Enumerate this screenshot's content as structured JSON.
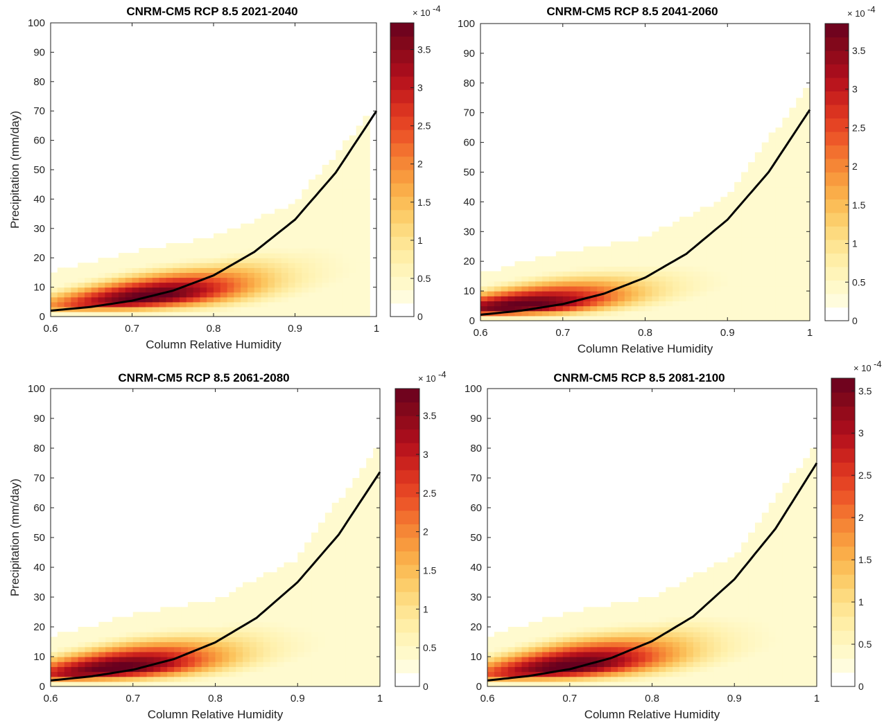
{
  "figure": {
    "colormap_stops": [
      "#ffffff",
      "#fffbd2",
      "#fff2b0",
      "#fde08a",
      "#fcc65f",
      "#f9a442",
      "#f47c32",
      "#ea4c26",
      "#d42a1e",
      "#b10e1c",
      "#8a0a1a",
      "#67001f"
    ]
  },
  "chart_data": [
    {
      "type": "heatmap",
      "title": "CNRM-CM5 RCP 8.5 2021-2040",
      "xlabel": "Column Relative Humidity",
      "ylabel": "Precipitation (mm/day)",
      "xlim": [
        0.6,
        1.0
      ],
      "ylim": [
        0,
        100
      ],
      "xticks": [
        "0.6",
        "0.7",
        "0.8",
        "0.9",
        "1"
      ],
      "yticks": [
        "0",
        "10",
        "20",
        "30",
        "40",
        "50",
        "60",
        "70",
        "80",
        "90",
        "100"
      ],
      "colorbar": {
        "min": 0,
        "max": 3.85,
        "ticks": [
          "0",
          "0.5",
          "1",
          "1.5",
          "2",
          "2.5",
          "3",
          "3.5"
        ],
        "exponent_base": "× 10",
        "exponent": "-4"
      },
      "fit_curve": {
        "x": [
          0.6,
          0.65,
          0.7,
          0.75,
          0.8,
          0.85,
          0.9,
          0.95,
          1.0
        ],
        "y": [
          2,
          3.3,
          5.4,
          8.8,
          14,
          22,
          33,
          49,
          70
        ]
      },
      "density": {
        "ridge_y": [
          3.5,
          6,
          9.5,
          13,
          17
        ],
        "ridge_x": [
          0.6,
          0.7,
          0.8,
          0.9,
          1.0
        ],
        "peak_x": 0.72,
        "upper_envelope": [
          15,
          22,
          27,
          39,
          72
        ],
        "max_x": 0.995
      }
    },
    {
      "type": "heatmap",
      "title": "CNRM-CM5 RCP 8.5 2041-2060",
      "xlabel": "Column Relative Humidity",
      "ylabel": "",
      "xlim": [
        0.6,
        1.0
      ],
      "ylim": [
        0,
        100
      ],
      "xticks": [
        "0.6",
        "0.7",
        "0.8",
        "0.9",
        "1"
      ],
      "yticks": [
        "0",
        "10",
        "20",
        "30",
        "40",
        "50",
        "60",
        "70",
        "80",
        "90",
        "100"
      ],
      "colorbar": {
        "min": 0,
        "max": 3.85,
        "ticks": [
          "0",
          "0.5",
          "1",
          "1.5",
          "2",
          "2.5",
          "3",
          "3.5"
        ],
        "exponent_base": "× 10",
        "exponent": "-4"
      },
      "fit_curve": {
        "x": [
          0.6,
          0.65,
          0.7,
          0.75,
          0.8,
          0.85,
          0.9,
          0.95,
          1.0
        ],
        "y": [
          2,
          3.4,
          5.6,
          9.1,
          14.5,
          22.5,
          34,
          50,
          71
        ]
      },
      "density": {
        "ridge_y": [
          4,
          6,
          9.5,
          13,
          17
        ],
        "ridge_x": [
          0.6,
          0.7,
          0.8,
          0.9,
          1.0
        ],
        "peak_x": 0.65,
        "upper_envelope": [
          16,
          23,
          28,
          42,
          80
        ],
        "max_x": 1.0
      }
    },
    {
      "type": "heatmap",
      "title": "CNRM-CM5 RCP 8.5 2061-2080",
      "xlabel": "Column Relative Humidity",
      "ylabel": "Precipitation (mm/day)",
      "xlim": [
        0.6,
        1.0
      ],
      "ylim": [
        0,
        100
      ],
      "xticks": [
        "0.6",
        "0.7",
        "0.8",
        "0.9",
        "1"
      ],
      "yticks": [
        "0",
        "10",
        "20",
        "30",
        "40",
        "50",
        "60",
        "70",
        "80",
        "90",
        "100"
      ],
      "colorbar": {
        "min": 0,
        "max": 3.85,
        "ticks": [
          "0",
          "0.5",
          "1",
          "1.5",
          "2",
          "2.5",
          "3",
          "3.5"
        ],
        "exponent_base": "× 10",
        "exponent": "-4"
      },
      "fit_curve": {
        "x": [
          0.6,
          0.65,
          0.7,
          0.75,
          0.8,
          0.85,
          0.9,
          0.95,
          1.0
        ],
        "y": [
          2,
          3.4,
          5.6,
          9.2,
          14.8,
          23,
          35,
          51,
          72
        ]
      },
      "density": {
        "ridge_y": [
          4,
          6.5,
          9.5,
          13,
          17
        ],
        "ridge_x": [
          0.6,
          0.7,
          0.8,
          0.9,
          1.0
        ],
        "peak_x": 0.68,
        "upper_envelope": [
          17,
          24,
          29,
          43,
          82
        ],
        "max_x": 1.0
      }
    },
    {
      "type": "heatmap",
      "title": "CNRM-CM5 RCP 8.5 2081-2100",
      "xlabel": "Column Relative Humidity",
      "ylabel": "",
      "xlim": [
        0.6,
        1.0
      ],
      "ylim": [
        0,
        100
      ],
      "xticks": [
        "0.6",
        "0.7",
        "0.8",
        "0.9",
        "1"
      ],
      "yticks": [
        "0",
        "10",
        "20",
        "30",
        "40",
        "50",
        "60",
        "70",
        "80",
        "90",
        "100"
      ],
      "colorbar": {
        "min": 0,
        "max": 3.65,
        "ticks": [
          "0",
          "0.5",
          "1",
          "1.5",
          "2",
          "2.5",
          "3",
          "3.5"
        ],
        "exponent_base": "× 10",
        "exponent": "-4"
      },
      "fit_curve": {
        "x": [
          0.6,
          0.65,
          0.7,
          0.75,
          0.8,
          0.85,
          0.9,
          0.95,
          1.0
        ],
        "y": [
          2,
          3.5,
          5.8,
          9.5,
          15.2,
          23.5,
          36,
          53,
          75
        ]
      },
      "density": {
        "ridge_y": [
          4,
          6.5,
          10,
          13.5,
          17
        ],
        "ridge_x": [
          0.6,
          0.7,
          0.8,
          0.9,
          1.0
        ],
        "peak_x": 0.7,
        "upper_envelope": [
          17,
          25,
          30,
          44,
          82
        ],
        "max_x": 1.0
      }
    }
  ]
}
